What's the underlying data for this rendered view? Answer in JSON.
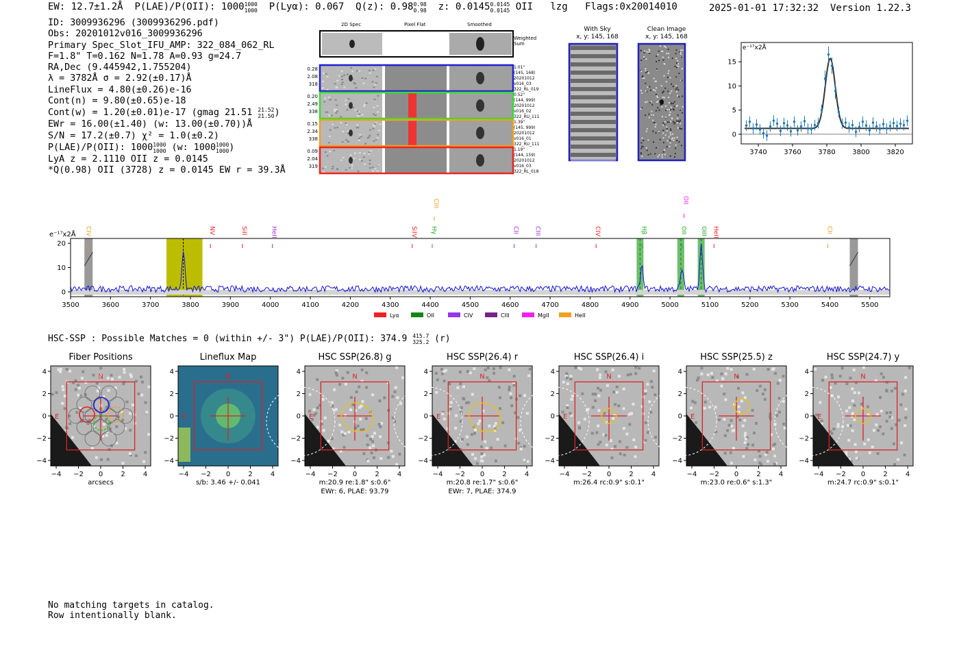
{
  "header": {
    "ew": "EW: 12.7±1.2Å",
    "plae_label": "P(LAE)/P(OII): 1000",
    "plae_hi": "1000",
    "plae_lo": "1000",
    "plya": "P(Lyα): 0.067",
    "qz_label": "Q(z): 0.98",
    "qz_hi": "0.98",
    "qz_lo": "0.98",
    "z_label": "z: 0.0145",
    "z_hi": "0.0145",
    "z_lo": "0.0145",
    "z_line": "OII",
    "lzg": "lzg",
    "flags": "Flags:0x20014010",
    "datetime": "2025-01-01 17:32:32",
    "version": "Version 1.22.3"
  },
  "info": {
    "id": "ID: 3009936296 (3009936296.pdf)",
    "obs": "Obs: 20201012v016_3009936296",
    "primary": "Primary Spec_Slot_IFU_AMP: 322_084_062_RL",
    "fit": "F=1.8\"  T=0.162  N=1.78  A=0.93  g=24.7",
    "radec": "RA,Dec (9.445942,1.755204)",
    "lambda": "λ = 3782Å   σ = 2.92(±0.17)Å",
    "lineflux": "LineFlux = 4.80(±0.26)e-16",
    "contn": "Cont(n) = 9.80(±0.65)e-18",
    "contw": "Cont(w) = 1.20(±0.01)e-17 (gmag 21.51",
    "contw_hi": "21.52",
    "contw_lo": "21.50",
    "contw_end": ")",
    "ewr": "EWr = 16.00(±1.40) (w: 13.00(±0.70))Å",
    "sn": "S/N = 17.2(±0.7)  χ² = 1.0(±0.2)",
    "plae": "P(LAE)/P(OII): 1000",
    "plae_hi": "1000",
    "plae_lo": "1000",
    "plae_w": "(w: 1000",
    "plae_w_hi": "1000",
    "plae_w_lo": "1000",
    "plae_end": ")",
    "lya": "LyA z = 2.1110  OII z = 0.0145",
    "q": "*Q(0.98) OII (3728) z = 0.0145  EW r = 39.3Å"
  },
  "cutouts": {
    "col_2d": "2D Spec",
    "col_flat": "Pixel Flat",
    "col_smooth": "Smoothed",
    "weighted": "Weighted Sum",
    "rows": [
      {
        "color": "#1f1fd6",
        "w": "0.28",
        "s": "2.08",
        "n": "318",
        "meta1": "1.01\"",
        "meta2": "(145, 168)",
        "meta3": "20201012",
        "meta4": "v016_03",
        "meta5": "322_RL_019"
      },
      {
        "color": "#33dd33",
        "w": "0.20",
        "s": "2.49",
        "n": "338",
        "meta1": "0.52\"",
        "meta2": "(144, 999)",
        "meta3": "20201012",
        "meta4": "v016_02",
        "meta5": "322_RU_111"
      },
      {
        "color": "#f0a020",
        "w": "0.15",
        "s": "2.34",
        "n": "338",
        "meta1": "1.39\"",
        "meta2": "(145, 999)",
        "meta3": "20201012",
        "meta4": "v016_01",
        "meta5": "322_RU_111"
      },
      {
        "color": "#ee2222",
        "w": "0.09",
        "s": "2.04",
        "n": "319",
        "meta1": "1.19\"",
        "meta2": "(144, 159)",
        "meta3": "20201012",
        "meta4": "v016_03",
        "meta5": "322_RL_018"
      }
    ]
  },
  "sky": {
    "with_sky": "With Sky",
    "with_sky_xy": "x, y: 145, 168",
    "clean": "Clean Image",
    "clean_xy": "x, y: 145, 168"
  },
  "hsc": {
    "header": "HSC-SSP : Possible Matches = 0 (within +/- 3\")  P(LAE)/P(OII): 374.9",
    "hi": "415.7",
    "lo": "325.2",
    "band": "(r)"
  },
  "footer": {
    "line1": "No matching targets in catalog.",
    "line2": "Row intentionally blank."
  },
  "chart_data": [
    {
      "type": "line",
      "name": "zoom-fit",
      "unit_label": "e⁻¹⁷x2Å",
      "xlim": [
        3730,
        3830
      ],
      "ylim": [
        -2,
        19
      ],
      "xticks": [
        3740,
        3760,
        3780,
        3800,
        3820
      ],
      "yticks": [
        0,
        5,
        10,
        15
      ],
      "color_data": "#1f77b4",
      "color_fit": "#333333",
      "fit": {
        "center": 3782,
        "sigma": 2.92,
        "amplitude": 14.5,
        "continuum": 1.2
      },
      "points": [
        [
          3733,
          1.8
        ],
        [
          3735,
          2.6
        ],
        [
          3737,
          1.2
        ],
        [
          3739,
          2.0
        ],
        [
          3741,
          1.0
        ],
        [
          3743,
          0.2
        ],
        [
          3745,
          -0.3
        ],
        [
          3747,
          1.6
        ],
        [
          3749,
          2.8
        ],
        [
          3751,
          2.2
        ],
        [
          3753,
          0.7
        ],
        [
          3755,
          2.3
        ],
        [
          3757,
          1.8
        ],
        [
          3759,
          0.6
        ],
        [
          3761,
          2.6
        ],
        [
          3763,
          0.8
        ],
        [
          3765,
          1.6
        ],
        [
          3767,
          2.7
        ],
        [
          3769,
          1.2
        ],
        [
          3771,
          1.1
        ],
        [
          3773,
          1.9
        ],
        [
          3775,
          2.3
        ],
        [
          3777,
          5.0
        ],
        [
          3779,
          11.5
        ],
        [
          3781,
          16.5
        ],
        [
          3783,
          14.2
        ],
        [
          3785,
          9.0
        ],
        [
          3787,
          4.6
        ],
        [
          3789,
          2.2
        ],
        [
          3791,
          2.4
        ],
        [
          3793,
          1.4
        ],
        [
          3795,
          1.9
        ],
        [
          3797,
          0.5
        ],
        [
          3799,
          1.5
        ],
        [
          3801,
          2.6
        ],
        [
          3803,
          1.8
        ],
        [
          3805,
          0.8
        ],
        [
          3807,
          2.4
        ],
        [
          3809,
          1.6
        ],
        [
          3811,
          1.1
        ],
        [
          3813,
          2.1
        ],
        [
          3815,
          1.2
        ],
        [
          3817,
          1.7
        ],
        [
          3819,
          2.3
        ],
        [
          3821,
          1.7
        ],
        [
          3823,
          2.2
        ],
        [
          3825,
          1.9
        ],
        [
          3827,
          2.8
        ]
      ]
    },
    {
      "type": "line",
      "name": "full-spectrum",
      "unit_label": "e⁻¹⁷x2Å",
      "xlim": [
        3500,
        5550
      ],
      "ylim": [
        -2,
        22
      ],
      "xticks": [
        3500,
        3600,
        3700,
        3800,
        3900,
        4000,
        4100,
        4200,
        4300,
        4400,
        4500,
        4600,
        4700,
        4800,
        4900,
        5000,
        5100,
        5200,
        5300,
        5400,
        5500
      ],
      "yticks": [
        0,
        10,
        20
      ],
      "emission_lines": [
        {
          "label": "CIV",
          "wave": 3540,
          "color": "#e8a020"
        },
        {
          "label": "NV",
          "wave": 3850,
          "color": "#ee2222"
        },
        {
          "label": "SiII",
          "wave": 3930,
          "color": "#ee2222"
        },
        {
          "label": "HeII",
          "wave": 4005,
          "color": "#9933cc"
        },
        {
          "label": "SiIV",
          "wave": 4355,
          "color": "#ee2222"
        },
        {
          "label": "CIII",
          "wave": 4410,
          "color": "#e8a020"
        },
        {
          "label": "Hγ",
          "wave": 4405,
          "color": "#22aa22"
        },
        {
          "label": "CII",
          "wave": 4610,
          "color": "#9933cc"
        },
        {
          "label": "CIII",
          "wave": 4665,
          "color": "#9933cc"
        },
        {
          "label": "CIV",
          "wave": 4815,
          "color": "#ee2222"
        },
        {
          "label": "Hβ",
          "wave": 4930,
          "color": "#22aa22"
        },
        {
          "label": "OII",
          "wave": 5030,
          "color": "#22aa22"
        },
        {
          "label": "OII",
          "wave": 5035,
          "color": "#ee22ee"
        },
        {
          "label": "OIII",
          "wave": 5080,
          "color": "#22aa22"
        },
        {
          "label": "HeII",
          "wave": 5110,
          "color": "#ee2222"
        },
        {
          "label": "CII",
          "wave": 5395,
          "color": "#e8a020"
        }
      ],
      "highlight_band": [
        3740,
        3830
      ],
      "marked_line": 3782,
      "green_bands": [
        4925,
        5027,
        5078
      ],
      "hatched_bands": [
        3545,
        5460
      ],
      "peaks": [
        [
          3782,
          16
        ],
        [
          4930,
          9
        ],
        [
          5030,
          8
        ],
        [
          5078,
          19
        ]
      ],
      "legend": [
        {
          "label": "Lyα",
          "color": "#ee2222"
        },
        {
          "label": "OII",
          "color": "#118811"
        },
        {
          "label": "CIV",
          "color": "#9933ee"
        },
        {
          "label": "CIII",
          "color": "#772288"
        },
        {
          "label": "MgII",
          "color": "#ee22ee"
        },
        {
          "label": "HeII",
          "color": "#f0a020"
        }
      ]
    }
  ],
  "thumbnails": [
    {
      "title": "Fiber Positions",
      "xlabel1": "arcsecs",
      "xlabel2": ""
    },
    {
      "title": "Lineflux Map",
      "xlabel1": "s/b: 3.46 +/- 0.041",
      "xlabel2": ""
    },
    {
      "title": "HSC SSP(26.8) g",
      "xlabel1": "m:20.9  re:1.8\"  s:0.6\"",
      "xlabel2": "EWr: 6, PLAE: 93.79"
    },
    {
      "title": "HSC SSP(26.4) r",
      "xlabel1": "m:20.8  re:1.7\"  s:0.6\"",
      "xlabel2": "EWr: 7, PLAE: 374.9"
    },
    {
      "title": "HSC SSP(26.4) i",
      "xlabel1": "m:26.4 rc:0.9\"  s:0.1\"",
      "xlabel2": ""
    },
    {
      "title": "HSC SSP(25.5) z",
      "xlabel1": "m:23.0  re:0.6\"  s:1.3\"",
      "xlabel2": ""
    },
    {
      "title": "HSC SSP(24.7) y",
      "xlabel1": "m:24.7 rc:0.9\"  s:0.1\"",
      "xlabel2": ""
    }
  ],
  "thumb_axis": {
    "ticks": [
      "−4",
      "−2",
      "0",
      "2",
      "4"
    ],
    "yticks": [
      "4",
      "2",
      "0",
      "−2",
      "−4"
    ],
    "north": "N",
    "east": "E"
  }
}
